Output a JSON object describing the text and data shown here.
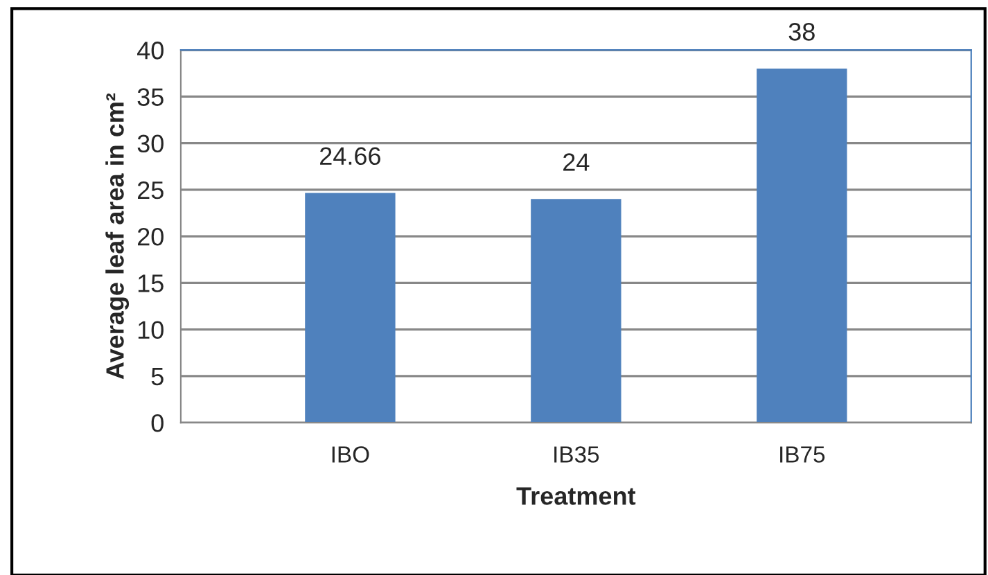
{
  "chart_data": {
    "type": "bar",
    "xlabel": "Treatment",
    "ylabel": "Average leaf area in cm²",
    "categories": [
      "IBO",
      "IB35",
      "IB75"
    ],
    "values": [
      24.66,
      24,
      38
    ],
    "color": "#4f81bd",
    "ylim": [
      0,
      40
    ],
    "yticks": [
      0,
      5,
      10,
      15,
      20,
      25,
      30,
      35,
      40
    ],
    "grid": "y",
    "data_labels": true
  }
}
